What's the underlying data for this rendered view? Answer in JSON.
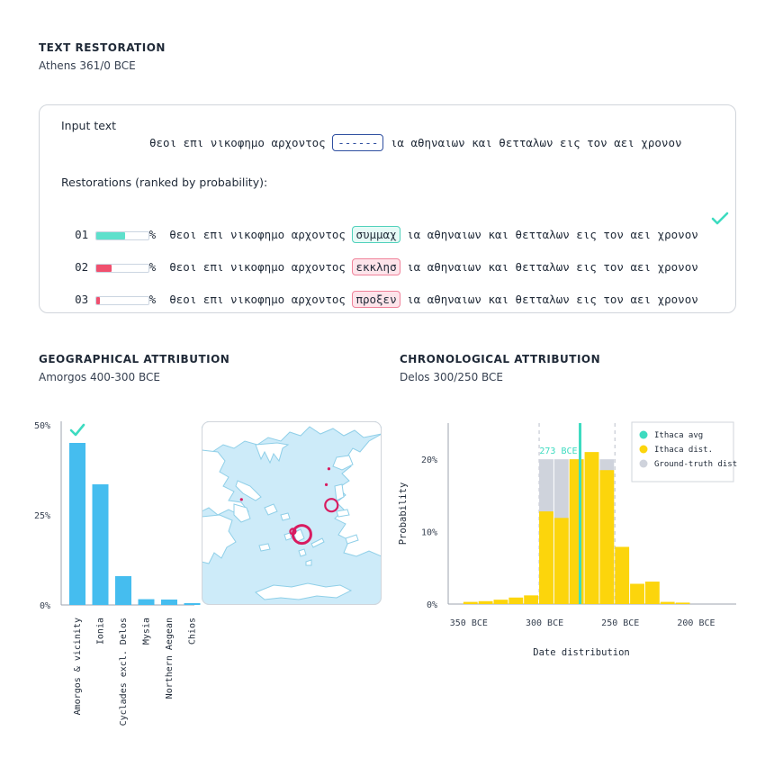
{
  "header": {
    "title": "TEXT RESTORATION",
    "subtitle": "Athens 361/0 BCE"
  },
  "restoration": {
    "input_label": "Input text",
    "input_prefix": "θεοι επι νικοφημο αρχοντος",
    "input_gap": "------",
    "input_suffix": "ια αθηναιων και θετταλων εις τον αει χρονον",
    "ranked_label": "Restorations (ranked by probability):",
    "rows": [
      {
        "rank": "01",
        "pct": "%",
        "prob": 0.55,
        "color": "#5ee0cc",
        "fill": "#e6faf6",
        "border": "#4fd1bb",
        "prefix": "θεοι επι νικοφημο αρχοντος",
        "word": "συμμαχ",
        "suffix": "ια αθηναιων και θετταλων εις τον αει χρονον",
        "correct": true
      },
      {
        "rank": "02",
        "pct": "%",
        "prob": 0.3,
        "color": "#f0506e",
        "fill": "#fde4ea",
        "border": "#f0829a",
        "prefix": "θεοι επι νικοφημο αρχοντος",
        "word": "εκκλησ",
        "suffix": "ια αθηναιων και θετταλων εις τον αει χρονον",
        "correct": false
      },
      {
        "rank": "03",
        "pct": "%",
        "prob": 0.07,
        "color": "#f0506e",
        "fill": "#fde4ea",
        "border": "#f0829a",
        "prefix": "θεοι επι νικοφημο αρχοντος",
        "word": "προξεν",
        "suffix": "ια αθηναιων και θετταλων εις τον αει χρονον",
        "correct": false
      }
    ]
  },
  "geo": {
    "title": "GEOGRAPHICAL ATTRIBUTION",
    "subtitle": "Amorgos 400-300 BCE"
  },
  "chrono": {
    "title": "CHRONOLOGICAL ATTRIBUTION",
    "subtitle": "Delos 300/250 BCE"
  },
  "colors": {
    "teal": "#3ddbc0",
    "pink": "#d81b60",
    "blue": "#45bdef",
    "yellow": "#fcd50c",
    "grey": "#cfd3dc",
    "sea": "#cdebf9",
    "land": "#ffffff"
  },
  "chart_data": [
    {
      "type": "bar",
      "categories": [
        "Amorgos & vicinity",
        "Ionia",
        "Cyclades excl. Delos",
        "Mysia",
        "Northern Aegean",
        "Chios"
      ],
      "values": [
        45,
        33.5,
        8,
        1.6,
        1.5,
        0.5
      ],
      "yticks": [
        "50%",
        "25%",
        "0%"
      ],
      "ytick_values": [
        50,
        25,
        0
      ],
      "ylim": [
        0,
        50
      ],
      "check_on": "Amorgos & vicinity"
    },
    {
      "type": "bar",
      "xlabel": "Date distribution",
      "ylabel": "Probability",
      "xlim": [
        -360,
        -170
      ],
      "ylim": [
        0,
        24
      ],
      "xticks": [
        {
          "value": -350,
          "label": "350 BCE"
        },
        {
          "value": -300,
          "label": "300 BCE"
        },
        {
          "value": -250,
          "label": "250 BCE"
        },
        {
          "value": -200,
          "label": "200 BCE"
        }
      ],
      "yticks": [
        {
          "value": 0,
          "label": "0%"
        },
        {
          "value": 10,
          "label": "10%"
        },
        {
          "value": 20,
          "label": "20%"
        }
      ],
      "bin_starts": [
        -350,
        -340,
        -330,
        -320,
        -310,
        -300,
        -290,
        -280,
        -270,
        -260,
        -250,
        -240,
        -230,
        -220,
        -210,
        -200,
        -190,
        -180
      ],
      "bin_width": 10,
      "series": [
        {
          "name": "Ithaca dist.",
          "values": [
            0.3,
            0.4,
            0.6,
            0.9,
            1.2,
            12.8,
            11.9,
            20,
            21,
            18.5,
            7.9,
            2.8,
            3.1,
            0.3,
            0.2,
            0,
            0,
            0
          ]
        },
        {
          "name": "Ground-truth dist",
          "values": [
            0,
            0,
            0,
            0,
            0,
            20,
            20,
            20,
            20,
            20,
            0,
            0,
            0,
            0,
            0,
            0,
            0,
            0
          ]
        }
      ],
      "ithaca_avg": -273,
      "avg_label": "273 BCE",
      "gt_range": [
        -300,
        -250
      ],
      "legend": {
        "position": "top-right",
        "items": [
          "Ithaca avg",
          "Ithaca dist.",
          "Ground-truth dist"
        ]
      }
    }
  ],
  "map": {
    "markers": [
      {
        "lon": 25.9,
        "lat": 36.83,
        "size": "large"
      },
      {
        "lon": 27.05,
        "lat": 37.75,
        "size": "medium"
      },
      {
        "lon": 25.55,
        "lat": 36.92,
        "size": "small"
      },
      {
        "lon": 23.55,
        "lat": 37.93,
        "size": "dot"
      },
      {
        "lon": 26.85,
        "lat": 38.4,
        "size": "dot"
      },
      {
        "lon": 26.95,
        "lat": 38.9,
        "size": "dot"
      }
    ]
  }
}
